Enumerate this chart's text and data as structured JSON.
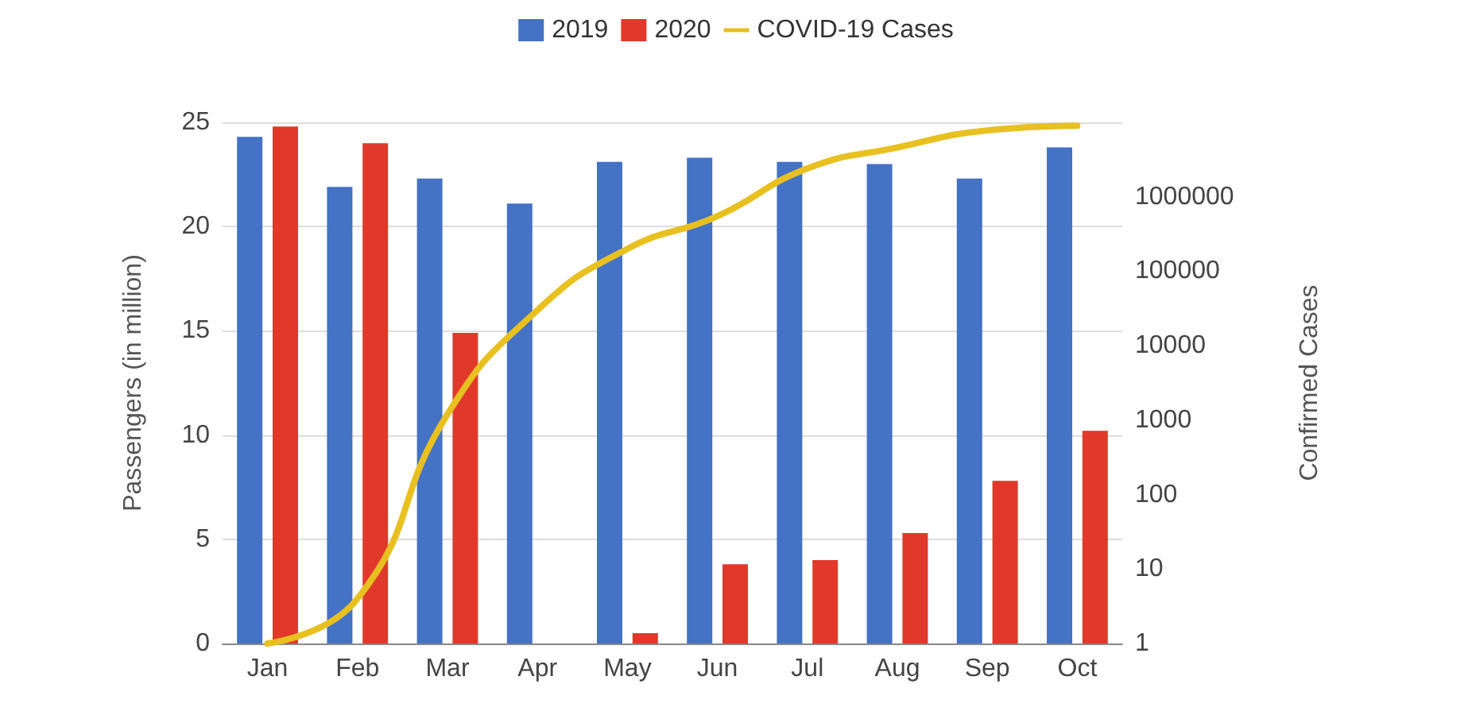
{
  "chart_data": {
    "type": "bar",
    "ylabel": "Passengers (in million)",
    "y2label": "Confirmed Cases",
    "categories": [
      "Jan",
      "Feb",
      "Mar",
      "Apr",
      "May",
      "Jun",
      "Jul",
      "Aug",
      "Sep",
      "Oct"
    ],
    "series": [
      {
        "name": "2019",
        "color": "#4472c4",
        "values": [
          24.3,
          21.9,
          22.3,
          21.1,
          23.1,
          23.3,
          23.1,
          23.0,
          22.3,
          23.8
        ]
      },
      {
        "name": "2020",
        "color": "#e0392b",
        "values": [
          24.8,
          24.0,
          14.9,
          0,
          0.5,
          3.8,
          4.0,
          5.3,
          7.8,
          10.2
        ]
      },
      {
        "name": "COVID-19 Cases",
        "type": "line",
        "axis": "y2",
        "color": "#e8c020",
        "values": [
          1,
          4,
          1200,
          30000,
          200000,
          550000,
          2400000,
          4600000,
          7800000,
          9000000
        ]
      }
    ],
    "ylim": [
      0,
      25
    ],
    "yticks": [
      0,
      5,
      10,
      15,
      20,
      25
    ],
    "y2lim": [
      1,
      10000000
    ],
    "y2ticks": [
      1,
      10,
      100,
      1000,
      10000,
      100000,
      1000000
    ],
    "log": "y2",
    "grid": "y",
    "legend": "top",
    "marker": "none",
    "line_style": "solid"
  }
}
